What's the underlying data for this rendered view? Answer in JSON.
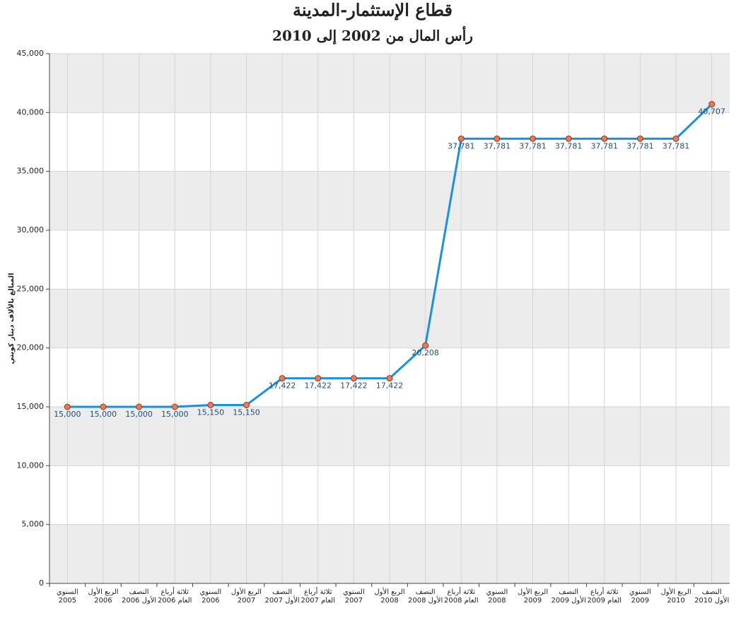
{
  "chart_data": {
    "type": "line",
    "title": "قطاع الإستثمار-المدينة",
    "subtitle": "رأس المال من 2002 إلى 2010",
    "y_label": "المبالغ بالألاف دينار كويتي",
    "categories": [
      "السنوي\n2005",
      "الربع الأول\n2006",
      "النصف\nالأول 2006",
      "ثلاثة أرباع\nالعام 2006",
      "السنوي\n2006",
      "الربع الأول\n2007",
      "النصف\nالأول 2007",
      "ثلاثة أرباع\nالعام 2007",
      "السنوي\n2007",
      "الربع الأول\n2008",
      "النصف\nالأول 2008",
      "ثلاثة أرباع\nالعام 2008",
      "السنوي\n2008",
      "الربع الأول\n2009",
      "النصف\nالأول 2009",
      "ثلاثة أرباع\nالعام 2009",
      "السنوي\n2009",
      "الربع الأول\n2010",
      "النصف\nالأول 2010"
    ],
    "values": [
      15000,
      15000,
      15000,
      15000,
      15150,
      15150,
      17422,
      17422,
      17422,
      17422,
      20208,
      37781,
      37781,
      37781,
      37781,
      37781,
      37781,
      37781,
      40707
    ],
    "value_labels": [
      "15,000",
      "15,000",
      "15,000",
      "15,000",
      "15,150",
      "15,150",
      "17,422",
      "17,422",
      "17,422",
      "17,422",
      "20,208",
      "37,781",
      "37,781",
      "37,781",
      "37,781",
      "37,781",
      "37,781",
      "37,781",
      "40,707"
    ],
    "color": "#1a90e0",
    "marker_color": "#f07850",
    "ylim": [
      0,
      45000
    ],
    "yticks": [
      0,
      {
        "value": 5000,
        "label": "5,000"
      },
      {
        "value": 10000,
        "label": "10,000"
      },
      {
        "value": 15000,
        "label": "15,000"
      },
      {
        "value": 20000,
        "label": "20,000"
      },
      {
        "value": 25000,
        "label": "25,000"
      },
      {
        "value": 30000,
        "label": "30,000"
      },
      {
        "value": 35000,
        "label": "35,000"
      },
      {
        "value": 40000,
        "label": "40,000"
      },
      {
        "value": 45000,
        "label": {
          "value": 45000,
          "label": "45,000"
        }
      }
    ],
    "grid": true
  }
}
